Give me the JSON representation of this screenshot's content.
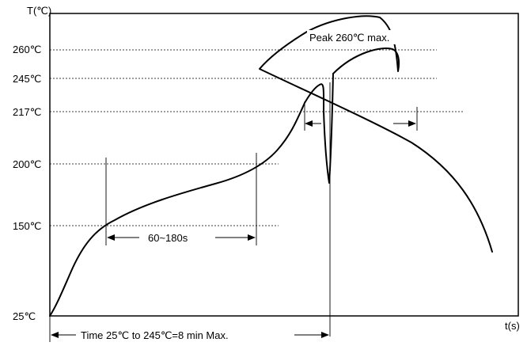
{
  "diagram": {
    "y_axis_label": "T(℃)",
    "x_axis_label": "t(s)",
    "temperature_levels": [
      {
        "label": "260℃",
        "value": 260
      },
      {
        "label": "245℃",
        "value": 245
      },
      {
        "label": "217℃",
        "value": 217
      },
      {
        "label": "200℃",
        "value": 200
      },
      {
        "label": "150℃",
        "value": 150
      },
      {
        "label": "25℃",
        "value": 25
      }
    ],
    "annotations": {
      "peak": "Peak 260℃ max.",
      "preheat": "60~180s",
      "total_time": "Time 25℃ to 245℃=8 min Max."
    },
    "colors": {
      "line": "#000000",
      "background": "#ffffff"
    }
  }
}
